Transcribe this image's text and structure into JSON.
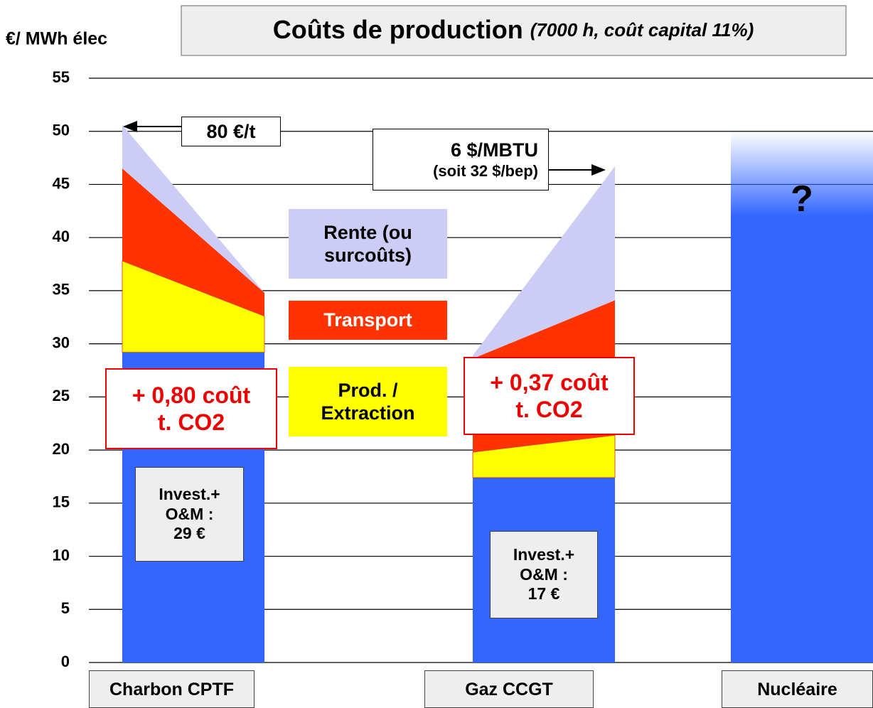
{
  "chart_data": {
    "type": "bar",
    "title": "Coûts de production",
    "subtitle": "(7000 h, coût capital 11%)",
    "y_label": "€/ MWh élec",
    "categories": [
      "Charbon CPTF",
      "Gaz CCGT",
      "Nucléaire"
    ],
    "ylim": [
      0,
      55
    ],
    "yticks": [
      0,
      5,
      10,
      15,
      20,
      25,
      30,
      35,
      40,
      45,
      50,
      55
    ],
    "grid": true,
    "series": [
      {
        "color": "#3366ff",
        "values": [
          29.2,
          17.4,
          50
        ],
        "values_end": [
          29.2,
          17.4,
          50
        ]
      },
      {
        "name": "Prod. / Extraction",
        "color": "#ffff00",
        "values": [
          8.6,
          2.4,
          null
        ],
        "values_end": [
          3.4,
          4.0,
          null
        ]
      },
      {
        "name": "Transport",
        "color": "#ff3300",
        "values": [
          8.7,
          8.8,
          null
        ],
        "values_end": [
          2.2,
          12.7,
          null
        ]
      },
      {
        "name": "Rente (ou surcoûts)",
        "color": "#ccccf5",
        "values": [
          4.1,
          0.3,
          null
        ],
        "values_end": [
          0,
          12.6,
          null
        ]
      }
    ],
    "annotations": [
      {
        "lines": [
          "80 €/t"
        ]
      },
      {
        "lines": [
          "6 $/MBTU",
          "(soit 32 $/bep)"
        ]
      },
      {
        "lines": [
          "+ 0,80 coût",
          "t. CO2"
        ]
      },
      {
        "lines": [
          "+ 0,37 coût",
          "t. CO2"
        ]
      },
      {
        "lines": [
          "Invest.+",
          "O&M :",
          "29 €"
        ]
      },
      {
        "lines": [
          "Invest.+",
          "O&M :",
          "17 €"
        ]
      },
      {
        "lines": [
          "?"
        ]
      }
    ]
  }
}
